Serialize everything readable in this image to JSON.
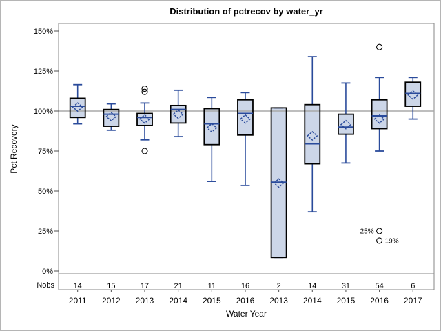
{
  "chart_data": {
    "type": "boxplot",
    "title": "Distribution of pctrecov by water_yr",
    "xlabel": "Water Year",
    "ylabel": "Pct Recovery",
    "nobs_label": "Nobs",
    "ylim": [
      0,
      150
    ],
    "yticks": [
      0,
      25,
      50,
      75,
      100,
      125,
      150
    ],
    "ytick_suffix": "%",
    "refline": 100,
    "grid": "off",
    "legend": "none",
    "boxes": [
      {
        "year": "2011",
        "nobs": 14,
        "low": 92,
        "q1": 96,
        "median": 103,
        "q3": 108,
        "high": 116.5,
        "mean": 102.5,
        "outliers": []
      },
      {
        "year": "2012",
        "nobs": 15,
        "low": 88,
        "q1": 90.5,
        "median": 98,
        "q3": 101,
        "high": 104.5,
        "mean": 96.5,
        "outliers": []
      },
      {
        "year": "2013",
        "nobs": 17,
        "low": 82,
        "q1": 91,
        "median": 96,
        "q3": 98.5,
        "high": 105,
        "mean": 95,
        "outliers": [
          {
            "v": 114
          },
          {
            "v": 112
          },
          {
            "v": 75
          }
        ]
      },
      {
        "year": "2014",
        "nobs": 21,
        "low": 84,
        "q1": 92.5,
        "median": 101,
        "q3": 103.5,
        "high": 113,
        "mean": 98,
        "outliers": []
      },
      {
        "year": "2015",
        "nobs": 11,
        "low": 56,
        "q1": 79,
        "median": 92,
        "q3": 101.5,
        "high": 108.5,
        "mean": 89.5,
        "outliers": []
      },
      {
        "year": "2016",
        "nobs": 16,
        "low": 53.5,
        "q1": 85,
        "median": 98.5,
        "q3": 107,
        "high": 111.5,
        "mean": 95,
        "outliers": []
      },
      {
        "year": "2013",
        "nobs": 2,
        "low": 8.5,
        "q1": 8.5,
        "median": 55.5,
        "q3": 102,
        "high": 102,
        "mean": 55,
        "outliers": []
      },
      {
        "year": "2014",
        "nobs": 14,
        "low": 37,
        "q1": 67,
        "median": 79.5,
        "q3": 104,
        "high": 134,
        "mean": 84.5,
        "outliers": []
      },
      {
        "year": "2015",
        "nobs": 31,
        "low": 67.5,
        "q1": 85.5,
        "median": 90,
        "q3": 98,
        "high": 117.5,
        "mean": 91.5,
        "outliers": []
      },
      {
        "year": "2016",
        "nobs": 54,
        "low": 75,
        "q1": 89,
        "median": 97,
        "q3": 107,
        "high": 121,
        "mean": 95,
        "outliers": [
          {
            "v": 140
          },
          {
            "v": 25,
            "label": "25%",
            "side": "left"
          },
          {
            "v": 19,
            "label": "19%",
            "side": "right"
          }
        ]
      },
      {
        "year": "2017",
        "nobs": 6,
        "low": 95,
        "q1": 103,
        "median": 111,
        "q3": 118,
        "high": 121,
        "mean": 110,
        "outliers": []
      }
    ]
  },
  "colors": {
    "box_fill": "#ccd6e8",
    "box_border": "#000000",
    "line_blue": "#2a4b9b",
    "refline": "#a8a8a8",
    "frame": "#878787",
    "tick": "#4d4d4d",
    "text": "#000000"
  }
}
